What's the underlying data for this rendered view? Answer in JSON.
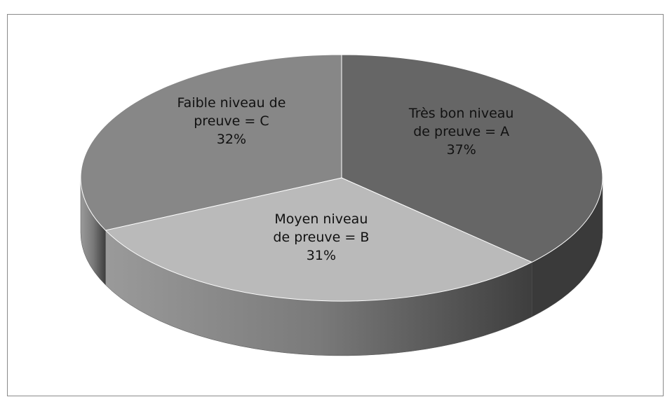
{
  "chart_data": {
    "type": "pie",
    "categories": [
      "Très bon niveau de preuve = A",
      "Moyen niveau de preuve = B",
      "Faible niveau de preuve = C"
    ],
    "values": [
      37,
      31,
      32
    ],
    "value_labels": [
      "37%",
      "31%",
      "32%"
    ],
    "colors": [
      "#666666",
      "#bababa",
      "#878787"
    ]
  }
}
